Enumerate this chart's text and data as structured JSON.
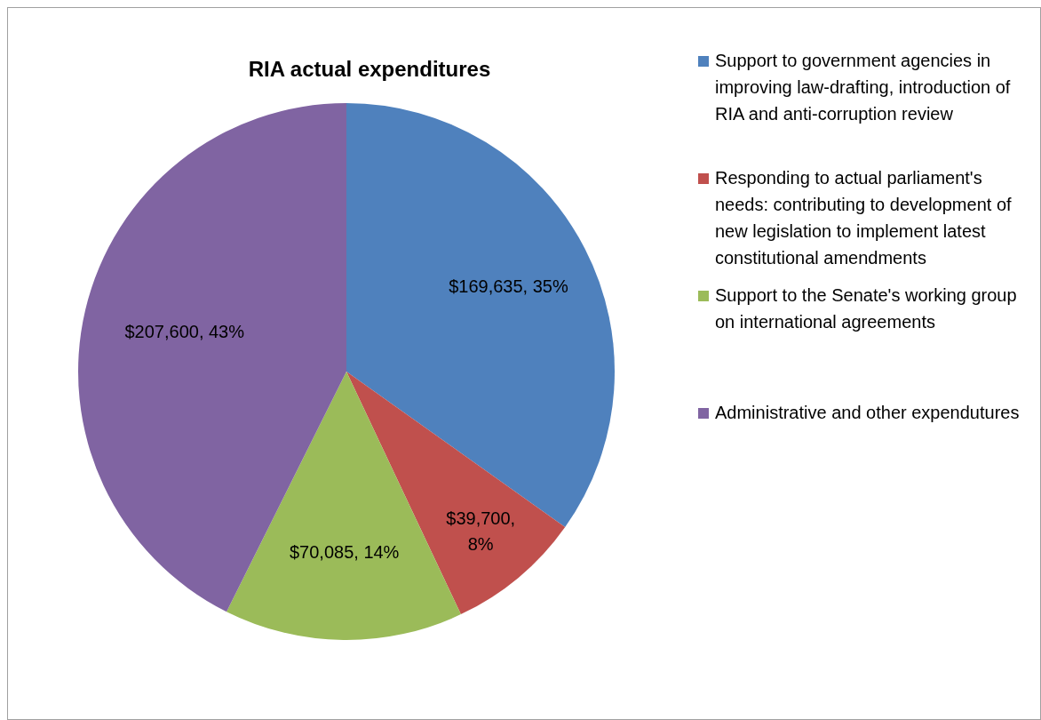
{
  "chart_data": {
    "type": "pie",
    "title": "RIA actual expenditures",
    "categories": [
      "Support to government agencies in improving law-drafting, introduction of RIA and anti-corruption review",
      "Responding to actual parliament's needs: contributing to development of new legislation to implement latest constitutional amendments",
      "Support to the Senate's working group on international agreements",
      "Administrative and other expendutures"
    ],
    "values": [
      169635,
      39700,
      70085,
      207600
    ],
    "value_labels": [
      "$169,635, 35%",
      "$39,700, 8%",
      "$70,085, 14%",
      "$207,600, 43%"
    ],
    "colors": [
      "#4f81bd",
      "#c0504d",
      "#9bbb59",
      "#8064a2"
    ],
    "legend": "right"
  }
}
